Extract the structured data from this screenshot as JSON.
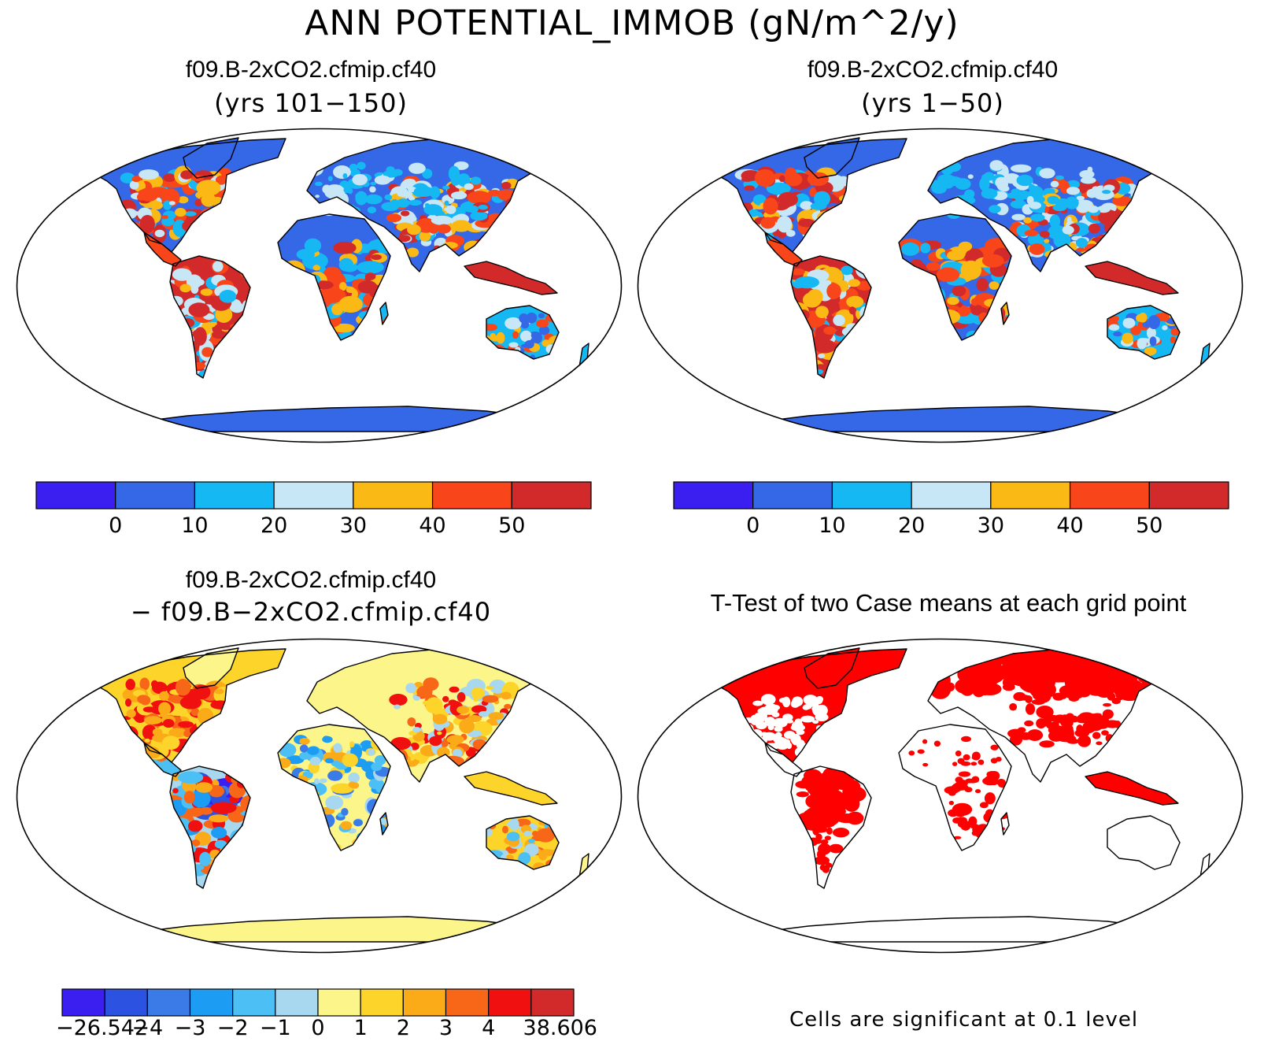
{
  "figure": {
    "title": "ANN POTENTIAL_IMMOB (gN/m^2/y)"
  },
  "panels": [
    {
      "id": "case1",
      "title": "f09.B-2xCO2.cfmip.cf40",
      "subtitle": "(yrs 101−150)",
      "colorbar": {
        "colors": [
          "#3b1ff0",
          "#3568e6",
          "#15b8f3",
          "#c7e6f6",
          "#fbb915",
          "#f8461a",
          "#d22a2a"
        ],
        "tick_labels": [
          "0",
          "10",
          "20",
          "30",
          "40",
          "50"
        ]
      }
    },
    {
      "id": "case2",
      "title": "f09.B-2xCO2.cfmip.cf40",
      "subtitle": "(yrs 1−50)",
      "colorbar": {
        "colors": [
          "#3b1ff0",
          "#3568e6",
          "#15b8f3",
          "#c7e6f6",
          "#fbb915",
          "#f8461a",
          "#d22a2a"
        ],
        "tick_labels": [
          "0",
          "10",
          "20",
          "30",
          "40",
          "50"
        ]
      }
    },
    {
      "id": "difference",
      "title": "f09.B-2xCO2.cfmip.cf40",
      "subtitle": "− f09.B−2xCO2.cfmip.cf40",
      "colorbar": {
        "colors": [
          "#3a1ff0",
          "#2b52e0",
          "#3a7be8",
          "#1c9cf2",
          "#4cc0f4",
          "#a8d8f0",
          "#fbf58a",
          "#fcd42a",
          "#fbaa18",
          "#f86618",
          "#f01010",
          "#d22a2a"
        ],
        "tick_labels": [
          "−26.542",
          "−4",
          "−3",
          "−2",
          "−1",
          "0",
          "1",
          "2",
          "3",
          "4",
          "38.606"
        ]
      }
    },
    {
      "id": "ttest",
      "title": "T-Test of two Case means at each grid point",
      "footnote": "Cells are significant at 0.1 level",
      "significant_color": "#ff0000"
    }
  ]
}
